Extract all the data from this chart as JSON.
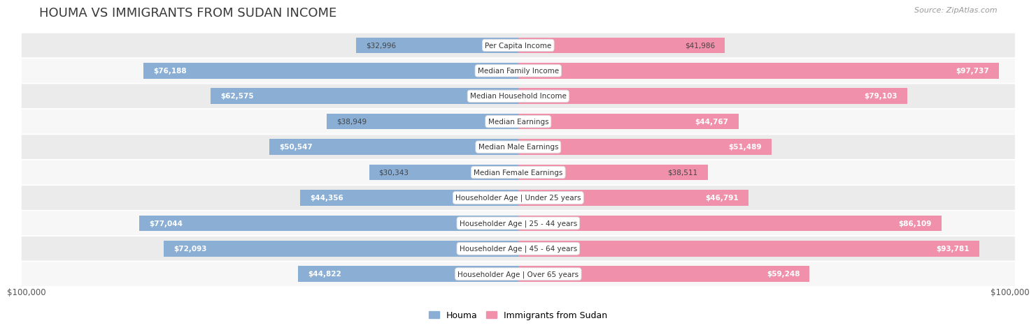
{
  "title": "HOUMA VS IMMIGRANTS FROM SUDAN INCOME",
  "source": "Source: ZipAtlas.com",
  "categories": [
    "Per Capita Income",
    "Median Family Income",
    "Median Household Income",
    "Median Earnings",
    "Median Male Earnings",
    "Median Female Earnings",
    "Householder Age | Under 25 years",
    "Householder Age | 25 - 44 years",
    "Householder Age | 45 - 64 years",
    "Householder Age | Over 65 years"
  ],
  "houma_values": [
    32996,
    76188,
    62575,
    38949,
    50547,
    30343,
    44356,
    77044,
    72093,
    44822
  ],
  "sudan_values": [
    41986,
    97737,
    79103,
    44767,
    51489,
    38511,
    46791,
    86109,
    93781,
    59248
  ],
  "houma_labels": [
    "$32,996",
    "$76,188",
    "$62,575",
    "$38,949",
    "$50,547",
    "$30,343",
    "$44,356",
    "$77,044",
    "$72,093",
    "$44,822"
  ],
  "sudan_labels": [
    "$41,986",
    "$97,737",
    "$79,103",
    "$44,767",
    "$51,489",
    "$38,511",
    "$46,791",
    "$86,109",
    "$93,781",
    "$59,248"
  ],
  "houma_color": "#8aaed4",
  "sudan_color": "#f090aa",
  "max_value": 100000,
  "bar_height": 0.62,
  "background_color": "#ffffff",
  "row_colors": [
    "#ebebeb",
    "#f7f7f7",
    "#ebebeb",
    "#f7f7f7",
    "#ebebeb",
    "#f7f7f7",
    "#ebebeb",
    "#f7f7f7",
    "#ebebeb",
    "#f7f7f7"
  ],
  "legend_houma": "Houma",
  "legend_sudan": "Immigrants from Sudan",
  "xlabel_left": "$100,000",
  "xlabel_right": "$100,000",
  "title_fontsize": 13,
  "source_fontsize": 8,
  "category_fontsize": 7.5,
  "value_fontsize": 7.5,
  "xlabel_fontsize": 8.5,
  "threshold_inside": 0.42
}
